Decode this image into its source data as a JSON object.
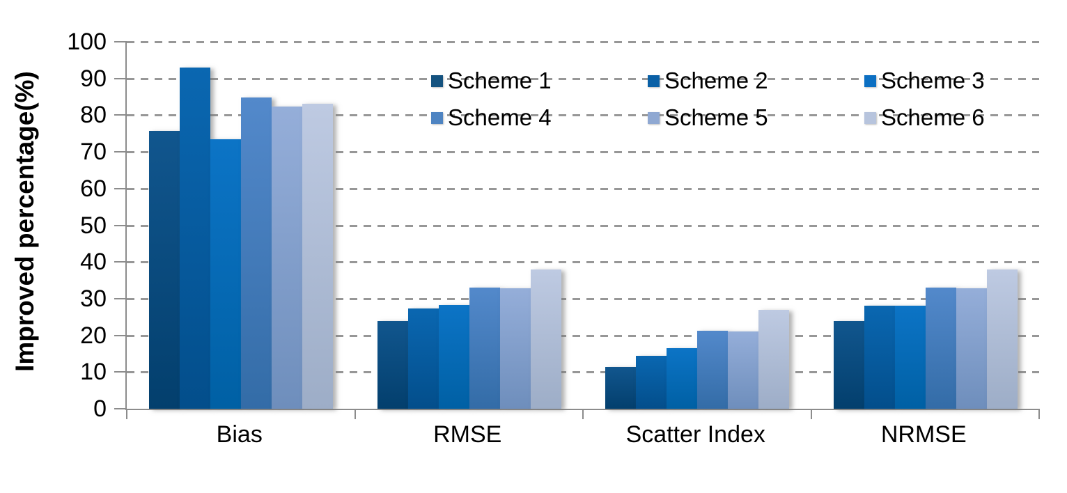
{
  "chart_data": {
    "type": "bar",
    "title": "",
    "xlabel": "",
    "ylabel": "Improved percentage(%)",
    "ylim": [
      0,
      100
    ],
    "ytick_step": 10,
    "ytick_labels": [
      "0",
      "10",
      "20",
      "30",
      "40",
      "50",
      "60",
      "70",
      "80",
      "90",
      "100"
    ],
    "grid": "horizontal dashed gray lines at every 10%",
    "legend_position": "top center inside plot, 2 rows x 3 columns, no border",
    "axis_color": "#8C8C8C",
    "gridline_color": "#979797",
    "categories": [
      "Bias",
      "RMSE",
      "Scatter Index",
      "NRMSE"
    ],
    "series": [
      {
        "name": "Scheme 1",
        "color": "#14527F",
        "gradient_top": "#11568E",
        "gradient_bottom": "#033F6D",
        "values": [
          75.7,
          24.0,
          11.3,
          24.0
        ]
      },
      {
        "name": "Scheme 2",
        "color": "#0A60A6",
        "gradient_top": "#0A67B1",
        "gradient_bottom": "#034E8B",
        "values": [
          93.0,
          27.4,
          14.5,
          28.0
        ]
      },
      {
        "name": "Scheme 3",
        "color": "#0C6FC2",
        "gradient_top": "#0C74C6",
        "gradient_bottom": "#0060A4",
        "values": [
          73.5,
          28.2,
          16.5,
          28.0
        ]
      },
      {
        "name": "Scheme 4",
        "color": "#4E84C2",
        "gradient_top": "#5389CB",
        "gradient_bottom": "#336CA7",
        "values": [
          84.8,
          33.0,
          21.2,
          33.0
        ]
      },
      {
        "name": "Scheme 5",
        "color": "#8FA8D2",
        "gradient_top": "#95AED9",
        "gradient_bottom": "#6E8EBC",
        "values": [
          82.4,
          32.8,
          21.1,
          32.8
        ]
      },
      {
        "name": "Scheme 6",
        "color": "#B7C4DD",
        "gradient_top": "#BECAE2",
        "gradient_bottom": "#9DADC7",
        "values": [
          83.2,
          38.0,
          27.0,
          38.0
        ]
      }
    ]
  }
}
